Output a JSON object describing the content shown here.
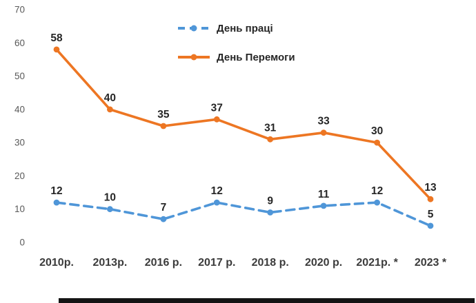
{
  "chart_data": {
    "type": "line",
    "title": "",
    "categories": [
      "2010р.",
      "2013р.",
      "2016 р.",
      "2017 р.",
      "2018 р.",
      "2020 р.",
      "2021р. *",
      "2023 *"
    ],
    "series": [
      {
        "name": "День праці",
        "values": [
          12,
          10,
          7,
          12,
          9,
          11,
          12,
          5
        ],
        "color": "#4f96d8",
        "style": "dashed"
      },
      {
        "name": "День Перемоги",
        "values": [
          58,
          40,
          35,
          37,
          31,
          33,
          30,
          13
        ],
        "color": "#ed7623",
        "style": "solid"
      }
    ],
    "y_ticks": [
      0,
      10,
      20,
      30,
      40,
      50,
      60,
      70
    ],
    "ylim": [
      0,
      70
    ],
    "grid": false,
    "legend_position": "top-center",
    "data_labels": true
  },
  "colors": {
    "blue": "#4f96d8",
    "orange": "#ed7623",
    "data_label": "#262626",
    "axis_tick": "#595959",
    "category_label": "#3b3b3b"
  }
}
